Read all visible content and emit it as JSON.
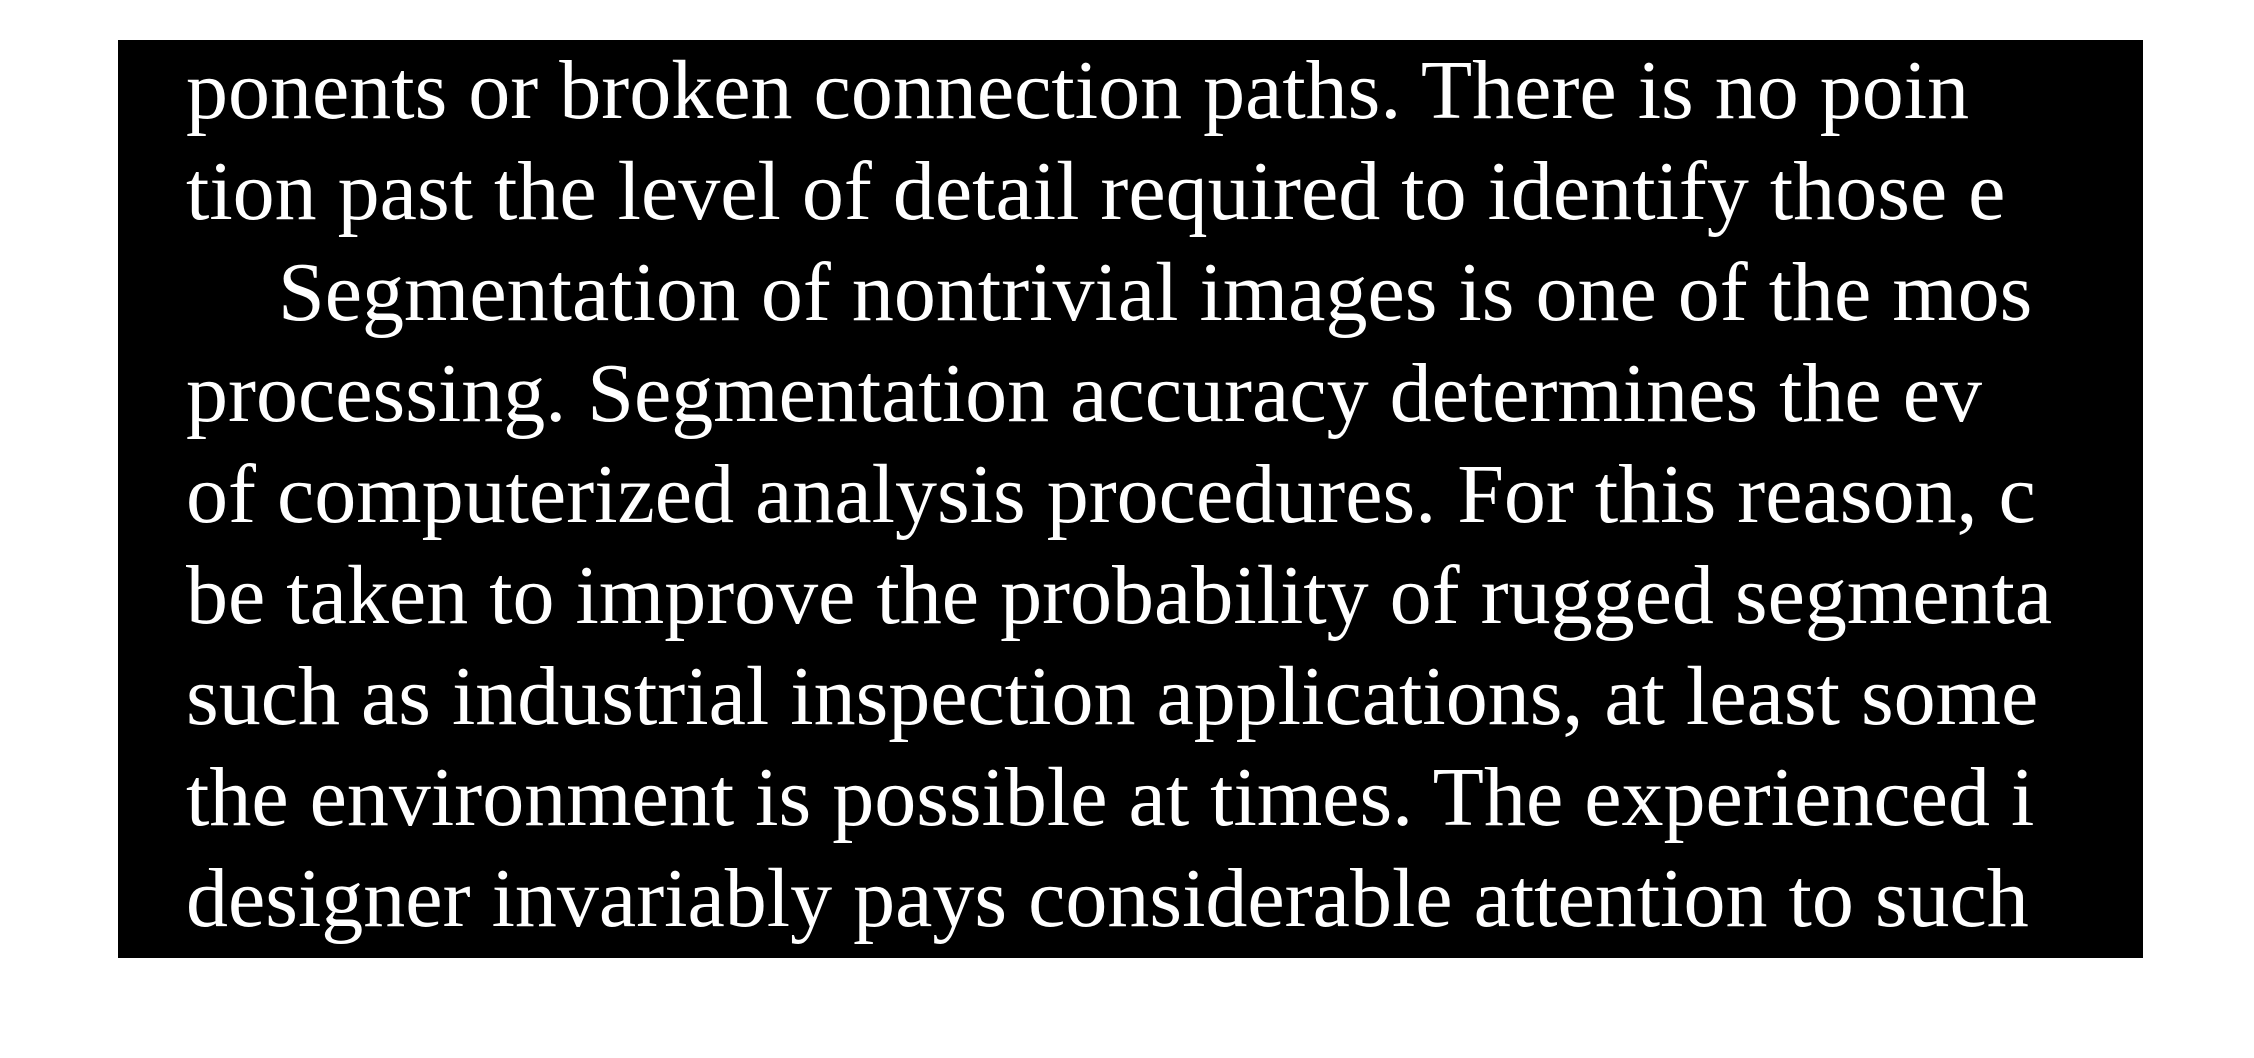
{
  "colors": {
    "background": "#ffffff",
    "panel": "#000000",
    "text": "#ffffff"
  },
  "document": {
    "lines": [
      {
        "text": "ponents or broken connection paths. There is no poin",
        "indent": false
      },
      {
        "text": "tion past the level of detail required to identify those e",
        "indent": false
      },
      {
        "text": "Segmentation of nontrivial images is one of the mos",
        "indent": true
      },
      {
        "text": "processing. Segmentation accuracy determines the ev",
        "indent": false
      },
      {
        "text": "of computerized analysis procedures. For this reason, c",
        "indent": false
      },
      {
        "text": "be taken to improve the probability of rugged segmenta",
        "indent": false
      },
      {
        "text": "such as industrial inspection applications, at least some",
        "indent": false
      },
      {
        "text": "the environment is possible at times. The experienced i",
        "indent": false
      },
      {
        "text": "designer invariably pays considerable attention to such",
        "indent": false
      }
    ]
  }
}
